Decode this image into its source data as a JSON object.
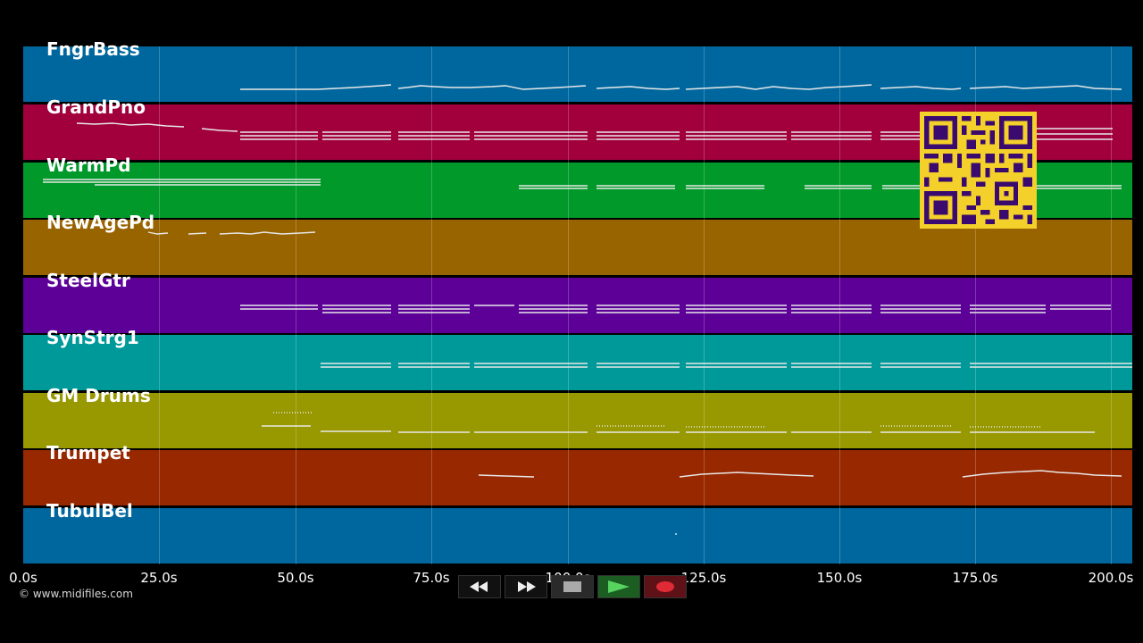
{
  "copyright": "© www.midifiles.com",
  "tracks": [
    {
      "name": "FngrBass",
      "color": "#00679e"
    },
    {
      "name": "GrandPno",
      "color": "#a1003c"
    },
    {
      "name": "WarmPd",
      "color": "#00992a"
    },
    {
      "name": "NewAgePd",
      "color": "#986400"
    },
    {
      "name": "SteelGtr",
      "color": "#5c0098"
    },
    {
      "name": "SynStrg1",
      "color": "#009999"
    },
    {
      "name": "GM Drums",
      "color": "#989800"
    },
    {
      "name": "Trumpet",
      "color": "#982800"
    },
    {
      "name": "TubulBel",
      "color": "#00679e"
    }
  ],
  "time_axis": {
    "ticks": [
      "0.0s",
      "25.0s",
      "50.0s",
      "75.0s",
      "100.0s",
      "125.0s",
      "150.0s",
      "175.0s",
      "200.0s"
    ]
  },
  "transport": {
    "rewind_icon": "rewind-icon",
    "forward_icon": "fast-forward-icon",
    "stop_icon": "stop-icon",
    "play_icon": "play-icon",
    "record_icon": "record-icon"
  }
}
